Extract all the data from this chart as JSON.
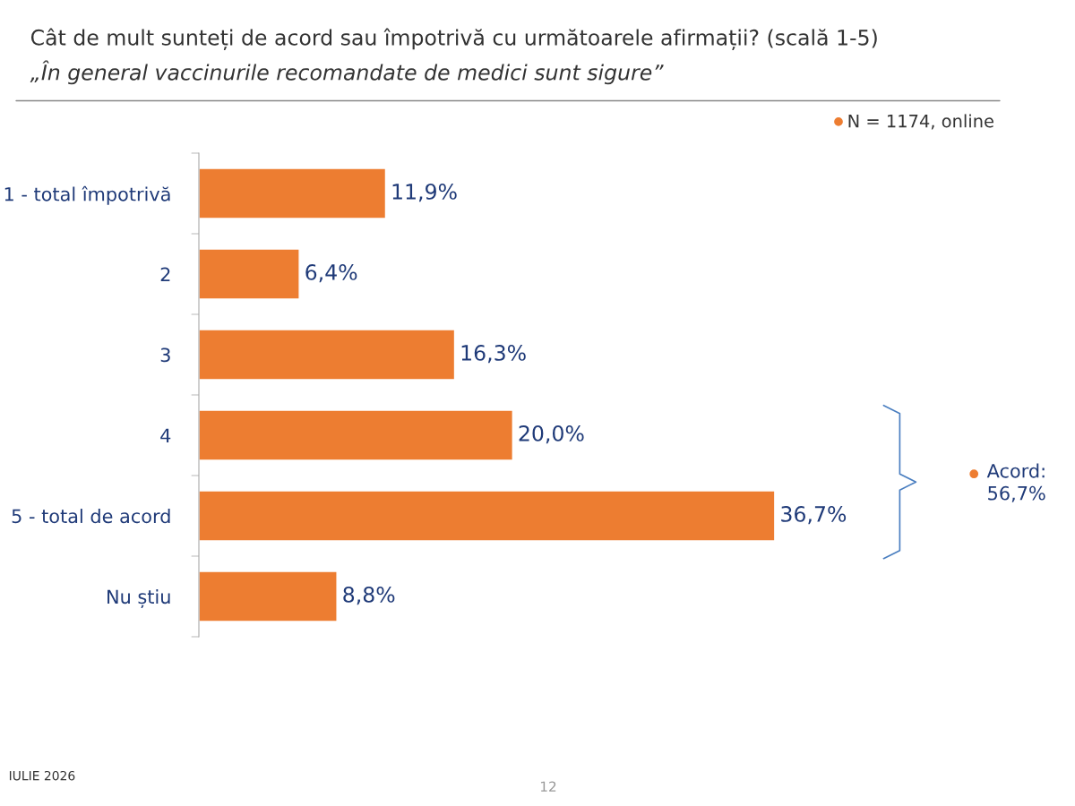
{
  "chart_data": {
    "type": "bar",
    "orientation": "horizontal",
    "title": "Cât de mult sunteți de acord sau împotrivă cu următoarele afirmații? (scală 1-5)",
    "subtitle": "„În general vaccinurile recomandate de medici sunt sigure”",
    "categories": [
      "1 - total împotrivă",
      "2",
      "3",
      "4",
      "5 - total de acord",
      "Nu știu"
    ],
    "values": [
      11.9,
      6.4,
      16.3,
      20.0,
      36.7,
      8.8
    ],
    "color": "#ed7d31",
    "value_labels": [
      "11,9%",
      "6,4%",
      "16,3%",
      "20,0%",
      "36,7%",
      "8,8%"
    ],
    "annotations": [
      "N = 1174, online",
      "IULIE 2026",
      "12",
      "Acord:\n56,7%"
    ],
    "grid": false,
    "legend": false
  }
}
